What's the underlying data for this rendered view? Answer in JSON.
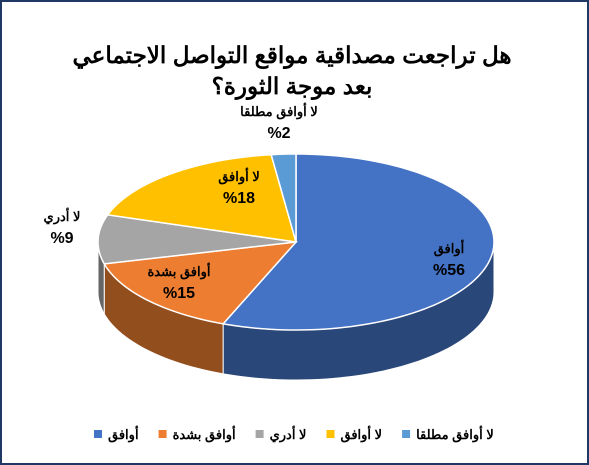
{
  "chart_data": {
    "type": "pie3d",
    "title": "هل تراجعت مصداقية مواقع التواصل الاجتماعي بعد موجة الثورة؟",
    "categories": [
      "أوافق",
      "أوافق بشدة",
      "لا أدري",
      "لا أوافق",
      "لا أوافق مطلقا"
    ],
    "values": [
      56,
      15,
      9,
      18,
      2
    ],
    "value_labels": [
      "%56",
      "%15",
      "%9",
      "%18",
      "%2"
    ],
    "colors": [
      "#4472c4",
      "#ed7d31",
      "#a5a5a5",
      "#ffc000",
      "#5b9bd5"
    ],
    "legend": "bottom"
  }
}
